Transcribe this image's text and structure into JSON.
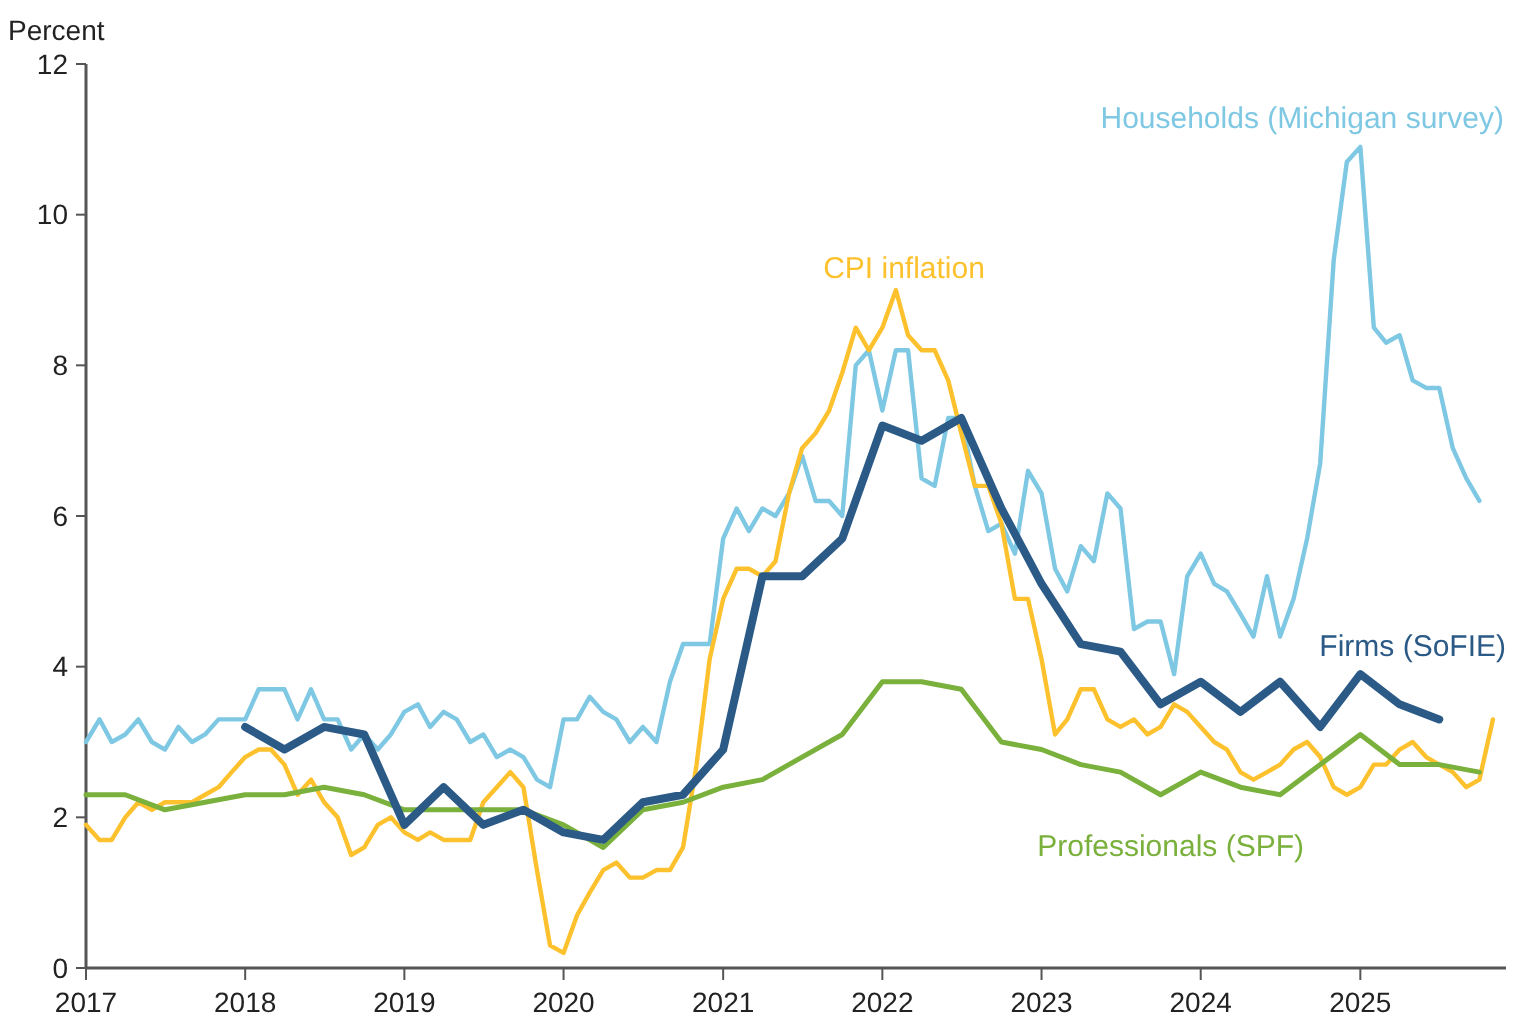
{
  "chart_data": {
    "type": "line",
    "ylabel": "Percent",
    "x": [
      "2017-01",
      "2017-02",
      "2017-03",
      "2017-04",
      "2017-05",
      "2017-06",
      "2017-07",
      "2017-08",
      "2017-09",
      "2017-10",
      "2017-11",
      "2017-12",
      "2018-01",
      "2018-02",
      "2018-03",
      "2018-04",
      "2018-05",
      "2018-06",
      "2018-07",
      "2018-08",
      "2018-09",
      "2018-10",
      "2018-11",
      "2018-12",
      "2019-01",
      "2019-02",
      "2019-03",
      "2019-04",
      "2019-05",
      "2019-06",
      "2019-07",
      "2019-08",
      "2019-09",
      "2019-10",
      "2019-11",
      "2019-12",
      "2020-01",
      "2020-02",
      "2020-03",
      "2020-04",
      "2020-05",
      "2020-06",
      "2020-07",
      "2020-08",
      "2020-09",
      "2020-10",
      "2020-11",
      "2020-12",
      "2021-01",
      "2021-02",
      "2021-03",
      "2021-04",
      "2021-05",
      "2021-06",
      "2021-07",
      "2021-08",
      "2021-09",
      "2021-10",
      "2021-11",
      "2021-12",
      "2022-01",
      "2022-02",
      "2022-03",
      "2022-04",
      "2022-05",
      "2022-06",
      "2022-07",
      "2022-08",
      "2022-09",
      "2022-10",
      "2022-11",
      "2022-12",
      "2023-01",
      "2023-02",
      "2023-03",
      "2023-04",
      "2023-05",
      "2023-06",
      "2023-07",
      "2023-08",
      "2023-09",
      "2023-10",
      "2023-11",
      "2023-12",
      "2024-01",
      "2024-02",
      "2024-03",
      "2024-04",
      "2024-05",
      "2024-06",
      "2024-07",
      "2024-08",
      "2024-09",
      "2024-10",
      "2024-11",
      "2024-12",
      "2025-01",
      "2025-02",
      "2025-03",
      "2025-04",
      "2025-05",
      "2025-06",
      "2025-07",
      "2025-08",
      "2025-09",
      "2025-10",
      "2025-11"
    ],
    "series": [
      {
        "name": "Households (Michigan survey)",
        "color": "#7ec8e3",
        "values": [
          3.0,
          3.3,
          3.0,
          3.1,
          3.3,
          3.0,
          2.9,
          3.2,
          3.0,
          3.1,
          3.3,
          3.3,
          3.3,
          3.7,
          3.7,
          3.7,
          3.3,
          3.7,
          3.3,
          3.3,
          2.9,
          3.1,
          2.9,
          3.1,
          3.4,
          3.5,
          3.2,
          3.4,
          3.3,
          3.0,
          3.1,
          2.8,
          2.9,
          2.8,
          2.5,
          2.4,
          3.3,
          3.3,
          3.6,
          3.4,
          3.3,
          3.0,
          3.2,
          3.0,
          3.8,
          4.3,
          4.3,
          4.3,
          5.7,
          6.1,
          5.8,
          6.1,
          6.0,
          6.3,
          6.8,
          6.2,
          6.2,
          6.0,
          8.0,
          8.2,
          7.4,
          8.2,
          8.2,
          6.5,
          6.4,
          7.3,
          7.3,
          6.4,
          5.8,
          5.9,
          5.5,
          6.6,
          6.3,
          5.3,
          5.0,
          5.6,
          5.4,
          6.3,
          6.1,
          4.5,
          4.6,
          4.6,
          3.9,
          5.2,
          5.5,
          5.1,
          5.0,
          4.7,
          4.4,
          5.2,
          4.4,
          4.9,
          5.7,
          6.7,
          9.4,
          10.7,
          10.9,
          8.5,
          8.3,
          8.4,
          7.8,
          7.7,
          7.7,
          6.9,
          6.5,
          6.2,
          null
        ]
      },
      {
        "name": "CPI inflation",
        "color": "#fcc12d",
        "values": [
          1.9,
          1.7,
          1.7,
          2.0,
          2.2,
          2.1,
          2.2,
          2.2,
          2.2,
          2.3,
          2.4,
          2.6,
          2.8,
          2.9,
          2.9,
          2.7,
          2.3,
          2.5,
          2.2,
          2.0,
          1.5,
          1.6,
          1.9,
          2.0,
          1.8,
          1.7,
          1.8,
          1.7,
          1.7,
          1.7,
          2.2,
          2.4,
          2.6,
          2.4,
          1.3,
          0.3,
          0.2,
          0.7,
          1.0,
          1.3,
          1.4,
          1.2,
          1.2,
          1.3,
          1.3,
          1.6,
          2.7,
          4.1,
          4.9,
          5.3,
          5.3,
          5.2,
          5.4,
          6.3,
          6.9,
          7.1,
          7.4,
          7.9,
          8.5,
          8.2,
          8.5,
          9.0,
          8.4,
          8.2,
          8.2,
          7.8,
          7.1,
          6.4,
          6.4,
          5.9,
          4.9,
          4.9,
          4.1,
          3.1,
          3.3,
          3.7,
          3.7,
          3.3,
          3.2,
          3.3,
          3.1,
          3.2,
          3.5,
          3.4,
          3.2,
          3.0,
          2.9,
          2.6,
          2.5,
          2.6,
          2.7,
          2.9,
          3.0,
          2.8,
          2.4,
          2.3,
          2.4,
          2.7,
          2.7,
          2.9,
          3.0,
          2.8,
          2.7,
          2.6,
          2.4,
          2.5,
          3.3
        ]
      },
      {
        "name": "Professionals (SPF)",
        "color": "#7ab03c",
        "x": [
          "2017-01",
          "2017-04",
          "2017-07",
          "2017-10",
          "2018-01",
          "2018-04",
          "2018-07",
          "2018-10",
          "2019-01",
          "2019-04",
          "2019-07",
          "2019-10",
          "2020-01",
          "2020-04",
          "2020-07",
          "2020-10",
          "2021-01",
          "2021-04",
          "2021-07",
          "2021-10",
          "2022-01",
          "2022-04",
          "2022-07",
          "2022-10",
          "2023-01",
          "2023-04",
          "2023-07",
          "2023-10",
          "2024-01",
          "2024-04",
          "2024-07",
          "2024-10",
          "2025-01",
          "2025-04",
          "2025-07",
          "2025-10"
        ],
        "values": [
          2.3,
          2.3,
          2.1,
          2.2,
          2.3,
          2.3,
          2.4,
          2.3,
          2.1,
          2.1,
          2.1,
          2.1,
          1.9,
          1.6,
          2.1,
          2.2,
          2.4,
          2.5,
          2.8,
          3.1,
          3.8,
          3.8,
          3.7,
          3.0,
          2.9,
          2.7,
          2.6,
          2.3,
          2.6,
          2.4,
          2.3,
          2.7,
          3.1,
          2.7,
          2.7,
          2.6
        ]
      },
      {
        "name": "Firms (SoFIE)",
        "color": "#2b5a87",
        "x": [
          "2018-01",
          "2018-04",
          "2018-07",
          "2018-10",
          "2019-01",
          "2019-04",
          "2019-07",
          "2019-10",
          "2020-01",
          "2020-04",
          "2020-07",
          "2020-10",
          "2021-01",
          "2021-04",
          "2021-07",
          "2021-10",
          "2022-01",
          "2022-04",
          "2022-07",
          "2022-10",
          "2023-01",
          "2023-04",
          "2023-07",
          "2023-10",
          "2024-01",
          "2024-04",
          "2024-07",
          "2024-10",
          "2025-01",
          "2025-04",
          "2025-07"
        ],
        "values": [
          3.2,
          2.9,
          3.2,
          3.1,
          1.9,
          2.4,
          1.9,
          2.1,
          1.8,
          1.7,
          2.2,
          2.3,
          2.9,
          5.2,
          5.2,
          5.7,
          7.2,
          7.0,
          7.3,
          6.1,
          5.1,
          4.3,
          4.2,
          3.5,
          3.8,
          3.4,
          3.8,
          3.2,
          3.9,
          3.5,
          3.3
        ]
      }
    ],
    "xlim": [
      "2017-01",
      "2025-12"
    ],
    "xticks": [
      {
        "value": "2017-01",
        "label": "2017"
      },
      {
        "value": "2018-01",
        "label": "2018"
      },
      {
        "value": "2019-01",
        "label": "2019"
      },
      {
        "value": "2020-01",
        "label": "2020"
      },
      {
        "value": "2021-01",
        "label": "2021"
      },
      {
        "value": "2022-01",
        "label": "2022"
      },
      {
        "value": "2023-01",
        "label": "2023"
      },
      {
        "value": "2024-01",
        "label": "2024"
      },
      {
        "value": "2025-01",
        "label": "2025"
      }
    ],
    "ylim": [
      0,
      12
    ],
    "yticks": [
      0,
      2,
      4,
      6,
      8,
      10,
      12
    ]
  }
}
